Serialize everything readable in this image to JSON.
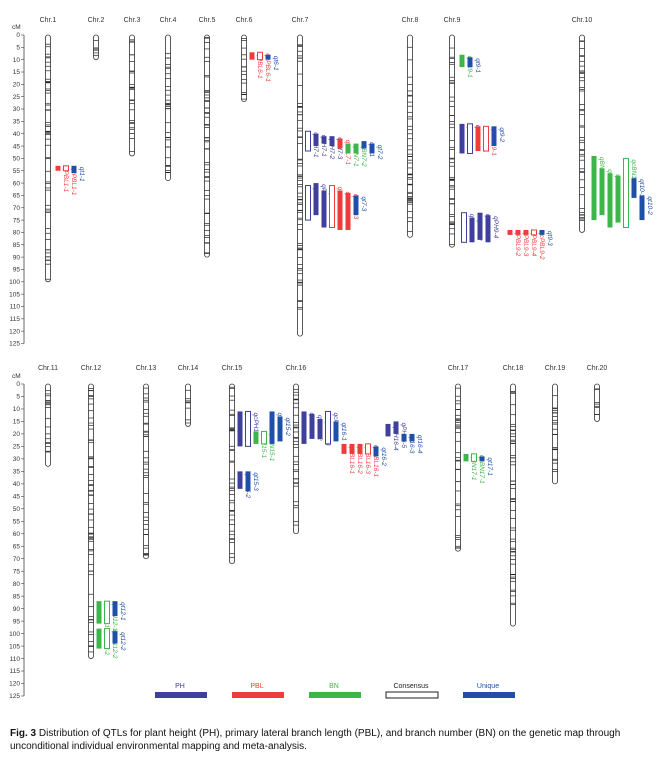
{
  "axis_unit": "cM",
  "colors": {
    "PH": "#3f3f9d",
    "PBL": "#ee3b3b",
    "BN": "#3cb54a",
    "Consensus": "#222222",
    "Unique": "#1f4fa8"
  },
  "legend": [
    {
      "key": "PH",
      "label": "PH"
    },
    {
      "key": "PBL",
      "label": "PBL"
    },
    {
      "key": "BN",
      "label": "BN"
    },
    {
      "key": "Consensus",
      "label": "Consensus"
    },
    {
      "key": "Unique",
      "label": "Unique"
    }
  ],
  "caption": {
    "prefix": "Fig. 3",
    "text": "Distribution of QTLs for plant height (PH), primary lateral branch length (PBL), and branch number (BN) on the genetic map through unconditional individual environmental mapping and meta-analysis."
  },
  "chart_data": {
    "type": "genetic-map",
    "panels": [
      {
        "name": "top",
        "axis": {
          "min": 0,
          "max": 125,
          "step": 5
        },
        "chromosomes": [
          {
            "name": "Chr.1",
            "length": 100,
            "qtls": [
              {
                "label": "qPBL1-1",
                "trait": "PBL",
                "start": 53,
                "end": 55,
                "consensus": false
              },
              {
                "label": "qcPBL1-1",
                "trait": "PBL",
                "start": 53,
                "end": 55,
                "consensus": true
              },
              {
                "label": "qt1-1",
                "trait": "Unique",
                "start": 53,
                "end": 56,
                "consensus": false
              }
            ]
          },
          {
            "name": "Chr.2",
            "length": 10,
            "qtls": []
          },
          {
            "name": "Chr.3",
            "length": 49,
            "qtls": []
          },
          {
            "name": "Chr.4",
            "length": 59,
            "qtls": []
          },
          {
            "name": "Chr.5",
            "length": 90,
            "qtls": []
          },
          {
            "name": "Chr.6",
            "length": 27,
            "qtls": [
              {
                "label": "qPBL6-1",
                "trait": "PBL",
                "start": 7,
                "end": 10,
                "consensus": false
              },
              {
                "label": "qcPBL6-1",
                "trait": "PBL",
                "start": 7,
                "end": 10,
                "consensus": true
              },
              {
                "label": "qt6-1",
                "trait": "Unique",
                "start": 8,
                "end": 10,
                "consensus": false
              }
            ]
          },
          {
            "name": "Chr.7",
            "length": 122,
            "qtls": [
              {
                "label": "qcPH7-1",
                "trait": "PH",
                "start": 39,
                "end": 47,
                "consensus": true
              },
              {
                "label": "qPH7-1",
                "trait": "PH",
                "start": 40,
                "end": 45,
                "consensus": false
              },
              {
                "label": "qPH7-2",
                "trait": "PH",
                "start": 41,
                "end": 44,
                "consensus": false
              },
              {
                "label": "qPH7-3",
                "trait": "PH",
                "start": 41,
                "end": 45,
                "consensus": false
              },
              {
                "label": "qPBL7-1",
                "trait": "PBL",
                "start": 42,
                "end": 46,
                "consensus": false
              },
              {
                "label": "qBN7-1",
                "trait": "BN",
                "start": 44,
                "end": 48,
                "consensus": false
              },
              {
                "label": "qBN7-2",
                "trait": "BN",
                "start": 44,
                "end": 48,
                "consensus": false
              },
              {
                "label": "qt7-1",
                "trait": "Unique",
                "start": 43,
                "end": 46,
                "consensus": false
              },
              {
                "label": "qt7-2",
                "trait": "Unique",
                "start": 44,
                "end": 48,
                "consensus": false
              },
              {
                "label": "qcPH7-2",
                "trait": "PH",
                "start": 61,
                "end": 75,
                "consensus": true
              },
              {
                "label": "qPH7-4",
                "trait": "PH",
                "start": 60,
                "end": 73,
                "consensus": false
              },
              {
                "label": "qPH7-5",
                "trait": "PH",
                "start": 63,
                "end": 78,
                "consensus": false
              },
              {
                "label": "qcPBL7-2",
                "trait": "PBL",
                "start": 61,
                "end": 78,
                "consensus": true
              },
              {
                "label": "qPBL7-2",
                "trait": "PBL",
                "start": 63,
                "end": 79,
                "consensus": false
              },
              {
                "label": "qPBL7-3",
                "trait": "PBL",
                "start": 64,
                "end": 79,
                "consensus": false
              },
              {
                "label": "qt7-3",
                "trait": "Unique",
                "start": 65,
                "end": 73,
                "consensus": false
              }
            ]
          },
          {
            "name": "Chr.8",
            "length": 82,
            "qtls": []
          },
          {
            "name": "Chr.9",
            "length": 86,
            "qtls": [
              {
                "label": "qBN9-1",
                "trait": "BN",
                "start": 8,
                "end": 13,
                "consensus": false
              },
              {
                "label": "qt9-1",
                "trait": "Unique",
                "start": 9,
                "end": 13,
                "consensus": false
              },
              {
                "label": "qPH9-1",
                "trait": "PH",
                "start": 36,
                "end": 48,
                "consensus": false
              },
              {
                "label": "qcPH9-1",
                "trait": "PH",
                "start": 36,
                "end": 48,
                "consensus": true
              },
              {
                "label": "qPBL9-1",
                "trait": "PBL",
                "start": 37,
                "end": 47,
                "consensus": false
              },
              {
                "label": "qcPBL9-1",
                "trait": "PBL",
                "start": 37,
                "end": 47,
                "consensus": true
              },
              {
                "label": "qt9-2",
                "trait": "Unique",
                "start": 37,
                "end": 45,
                "consensus": false
              },
              {
                "label": "qPH9-2",
                "trait": "PH",
                "start": 74,
                "end": 84,
                "consensus": false
              },
              {
                "label": "qPH9-3",
                "trait": "PH",
                "start": 72,
                "end": 83,
                "consensus": false
              },
              {
                "label": "qPH9-4",
                "trait": "PH",
                "start": 73,
                "end": 84,
                "consensus": false
              },
              {
                "label": "qcPH9-2",
                "trait": "PH",
                "start": 72,
                "end": 84,
                "consensus": true
              },
              {
                "label": "qPBL9-2",
                "trait": "PBL",
                "start": 79,
                "end": 81,
                "consensus": false
              },
              {
                "label": "qPBL9-3",
                "trait": "PBL",
                "start": 79,
                "end": 81,
                "consensus": false
              },
              {
                "label": "qPBL9-4",
                "trait": "PBL",
                "start": 79,
                "end": 81,
                "consensus": false
              },
              {
                "label": "qcPBL9-2",
                "trait": "PBL",
                "start": 79,
                "end": 81,
                "consensus": true
              },
              {
                "label": "qt9-3",
                "trait": "Unique",
                "start": 79,
                "end": 81,
                "consensus": false
              }
            ]
          },
          {
            "name": "Chr.10",
            "length": 80,
            "qtls": [
              {
                "label": "qBN10-1",
                "trait": "BN",
                "start": 49,
                "end": 75,
                "consensus": false
              },
              {
                "label": "qBN10-2",
                "trait": "BN",
                "start": 54,
                "end": 73,
                "consensus": false
              },
              {
                "label": "qBN10-3",
                "trait": "BN",
                "start": 56,
                "end": 78,
                "consensus": false
              },
              {
                "label": "qBN10-4",
                "trait": "BN",
                "start": 57,
                "end": 76,
                "consensus": false
              },
              {
                "label": "qcBN10-1",
                "trait": "BN",
                "start": 50,
                "end": 78,
                "consensus": true
              },
              {
                "label": "qt10-1",
                "trait": "Unique",
                "start": 58,
                "end": 66,
                "consensus": false
              },
              {
                "label": "qt10-2",
                "trait": "Unique",
                "start": 65,
                "end": 75,
                "consensus": false
              }
            ]
          }
        ]
      },
      {
        "name": "bottom",
        "axis": {
          "min": 0,
          "max": 125,
          "step": 5
        },
        "chromosomes": [
          {
            "name": "Chr.11",
            "length": 33,
            "qtls": []
          },
          {
            "name": "Chr.12",
            "length": 110,
            "qtls": [
              {
                "label": "qBN12-1",
                "trait": "BN",
                "start": 87,
                "end": 96,
                "consensus": false
              },
              {
                "label": "qcBN12-1",
                "trait": "BN",
                "start": 87,
                "end": 96,
                "consensus": true
              },
              {
                "label": "qt12-1",
                "trait": "Unique",
                "start": 87,
                "end": 93,
                "consensus": false
              },
              {
                "label": "qBN12-2",
                "trait": "BN",
                "start": 98,
                "end": 106,
                "consensus": false
              },
              {
                "label": "qcBN12-2",
                "trait": "BN",
                "start": 98,
                "end": 106,
                "consensus": true
              },
              {
                "label": "qt12-2",
                "trait": "Unique",
                "start": 99,
                "end": 104,
                "consensus": false
              }
            ]
          },
          {
            "name": "Chr.13",
            "length": 70,
            "qtls": []
          },
          {
            "name": "Chr.14",
            "length": 17,
            "qtls": []
          },
          {
            "name": "Chr.15",
            "length": 72,
            "qtls": [
              {
                "label": "qPH15-1",
                "trait": "PH",
                "start": 11,
                "end": 25,
                "consensus": false
              },
              {
                "label": "qcPH15-1",
                "trait": "PH",
                "start": 11,
                "end": 25,
                "consensus": true
              },
              {
                "label": "qBN15-1",
                "trait": "BN",
                "start": 19,
                "end": 24,
                "consensus": false
              },
              {
                "label": "qcBN15-1",
                "trait": "BN",
                "start": 19,
                "end": 24,
                "consensus": true
              },
              {
                "label": "qt15-1",
                "trait": "Unique",
                "start": 11,
                "end": 24,
                "consensus": false
              },
              {
                "label": "qt15-2",
                "trait": "Unique",
                "start": 13,
                "end": 23,
                "consensus": false
              },
              {
                "label": "qPH15-2",
                "trait": "PH",
                "start": 35,
                "end": 42,
                "consensus": false
              },
              {
                "label": "qt15-3",
                "trait": "Unique",
                "start": 35,
                "end": 43,
                "consensus": false
              }
            ]
          },
          {
            "name": "Chr.16",
            "length": 60,
            "qtls": [
              {
                "label": "qPH16-1",
                "trait": "PH",
                "start": 11,
                "end": 24,
                "consensus": false
              },
              {
                "label": "qPH16-2",
                "trait": "PH",
                "start": 12,
                "end": 22,
                "consensus": false
              },
              {
                "label": "qPH16-3",
                "trait": "PH",
                "start": 14,
                "end": 22,
                "consensus": false
              },
              {
                "label": "qcPH16-1",
                "trait": "PH",
                "start": 11,
                "end": 24,
                "consensus": true
              },
              {
                "label": "qt16-1",
                "trait": "Unique",
                "start": 15,
                "end": 23,
                "consensus": false
              },
              {
                "label": "qPBL16-1",
                "trait": "PBL",
                "start": 24,
                "end": 28,
                "consensus": false
              },
              {
                "label": "qPBL16-2",
                "trait": "PBL",
                "start": 24,
                "end": 28,
                "consensus": false
              },
              {
                "label": "qPBL16-3",
                "trait": "PBL",
                "start": 24,
                "end": 28,
                "consensus": false
              },
              {
                "label": "qcPBL16-1",
                "trait": "PBL",
                "start": 24,
                "end": 28,
                "consensus": true
              },
              {
                "label": "qt16-2",
                "trait": "Unique",
                "start": 25,
                "end": 29,
                "consensus": false
              },
              {
                "label": "qPH16-4",
                "trait": "PH",
                "start": 16,
                "end": 21,
                "consensus": false
              },
              {
                "label": "qPH16-5",
                "trait": "PH",
                "start": 15,
                "end": 20,
                "consensus": false
              },
              {
                "label": "qt16-3",
                "trait": "Unique",
                "start": 20,
                "end": 23,
                "consensus": false
              },
              {
                "label": "qt16-4",
                "trait": "Unique",
                "start": 20,
                "end": 23,
                "consensus": false
              }
            ]
          },
          {
            "name": "Chr.17",
            "length": 67,
            "qtls": [
              {
                "label": "qBN17-1",
                "trait": "BN",
                "start": 28,
                "end": 31,
                "consensus": false
              },
              {
                "label": "qcBN17-1",
                "trait": "BN",
                "start": 28,
                "end": 31,
                "consensus": true
              },
              {
                "label": "qt17-1",
                "trait": "Unique",
                "start": 29,
                "end": 31,
                "consensus": false
              }
            ]
          },
          {
            "name": "Chr.18",
            "length": 97,
            "qtls": []
          },
          {
            "name": "Chr.19",
            "length": 40,
            "qtls": []
          },
          {
            "name": "Chr.20",
            "length": 15,
            "qtls": []
          }
        ]
      }
    ]
  }
}
